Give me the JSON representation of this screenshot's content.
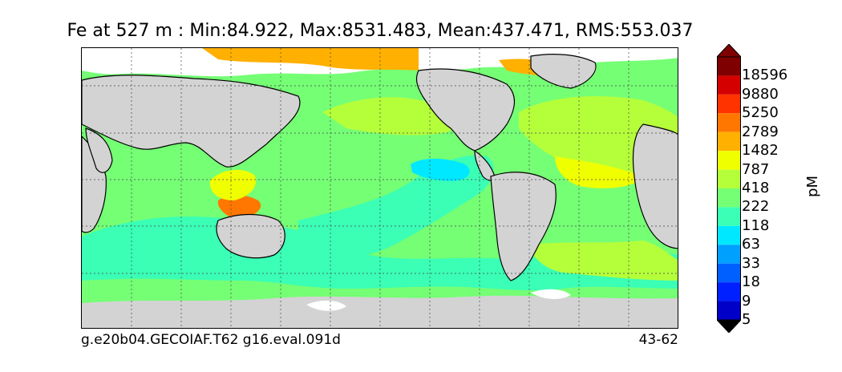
{
  "title": "Fe at 527 m : Min:84.922, Max:8531.483, Mean:437.471, RMS:553.037",
  "footer": {
    "left": "g.e20b04.GECOIAF.T62 g16.eval.091d",
    "right": "43-62"
  },
  "colorbar": {
    "unit": "pM",
    "levels": [
      "18596",
      "9880",
      "5250",
      "2789",
      "1482",
      "787",
      "418",
      "222",
      "118",
      "63",
      "33",
      "18",
      "9",
      "5"
    ],
    "colors": [
      "#7f0000",
      "#d40000",
      "#ff3300",
      "#ff7700",
      "#ffb000",
      "#f0ff00",
      "#b5ff3a",
      "#75ff75",
      "#3affb5",
      "#00e8ff",
      "#00a0ff",
      "#0060ff",
      "#0020ff",
      "#0000c8",
      "#00007f",
      "#000000"
    ]
  },
  "map_colors": {
    "land": "#d3d3d3",
    "ice": "#ffffff",
    "grid": "#444444",
    "coast": "#000000"
  }
}
